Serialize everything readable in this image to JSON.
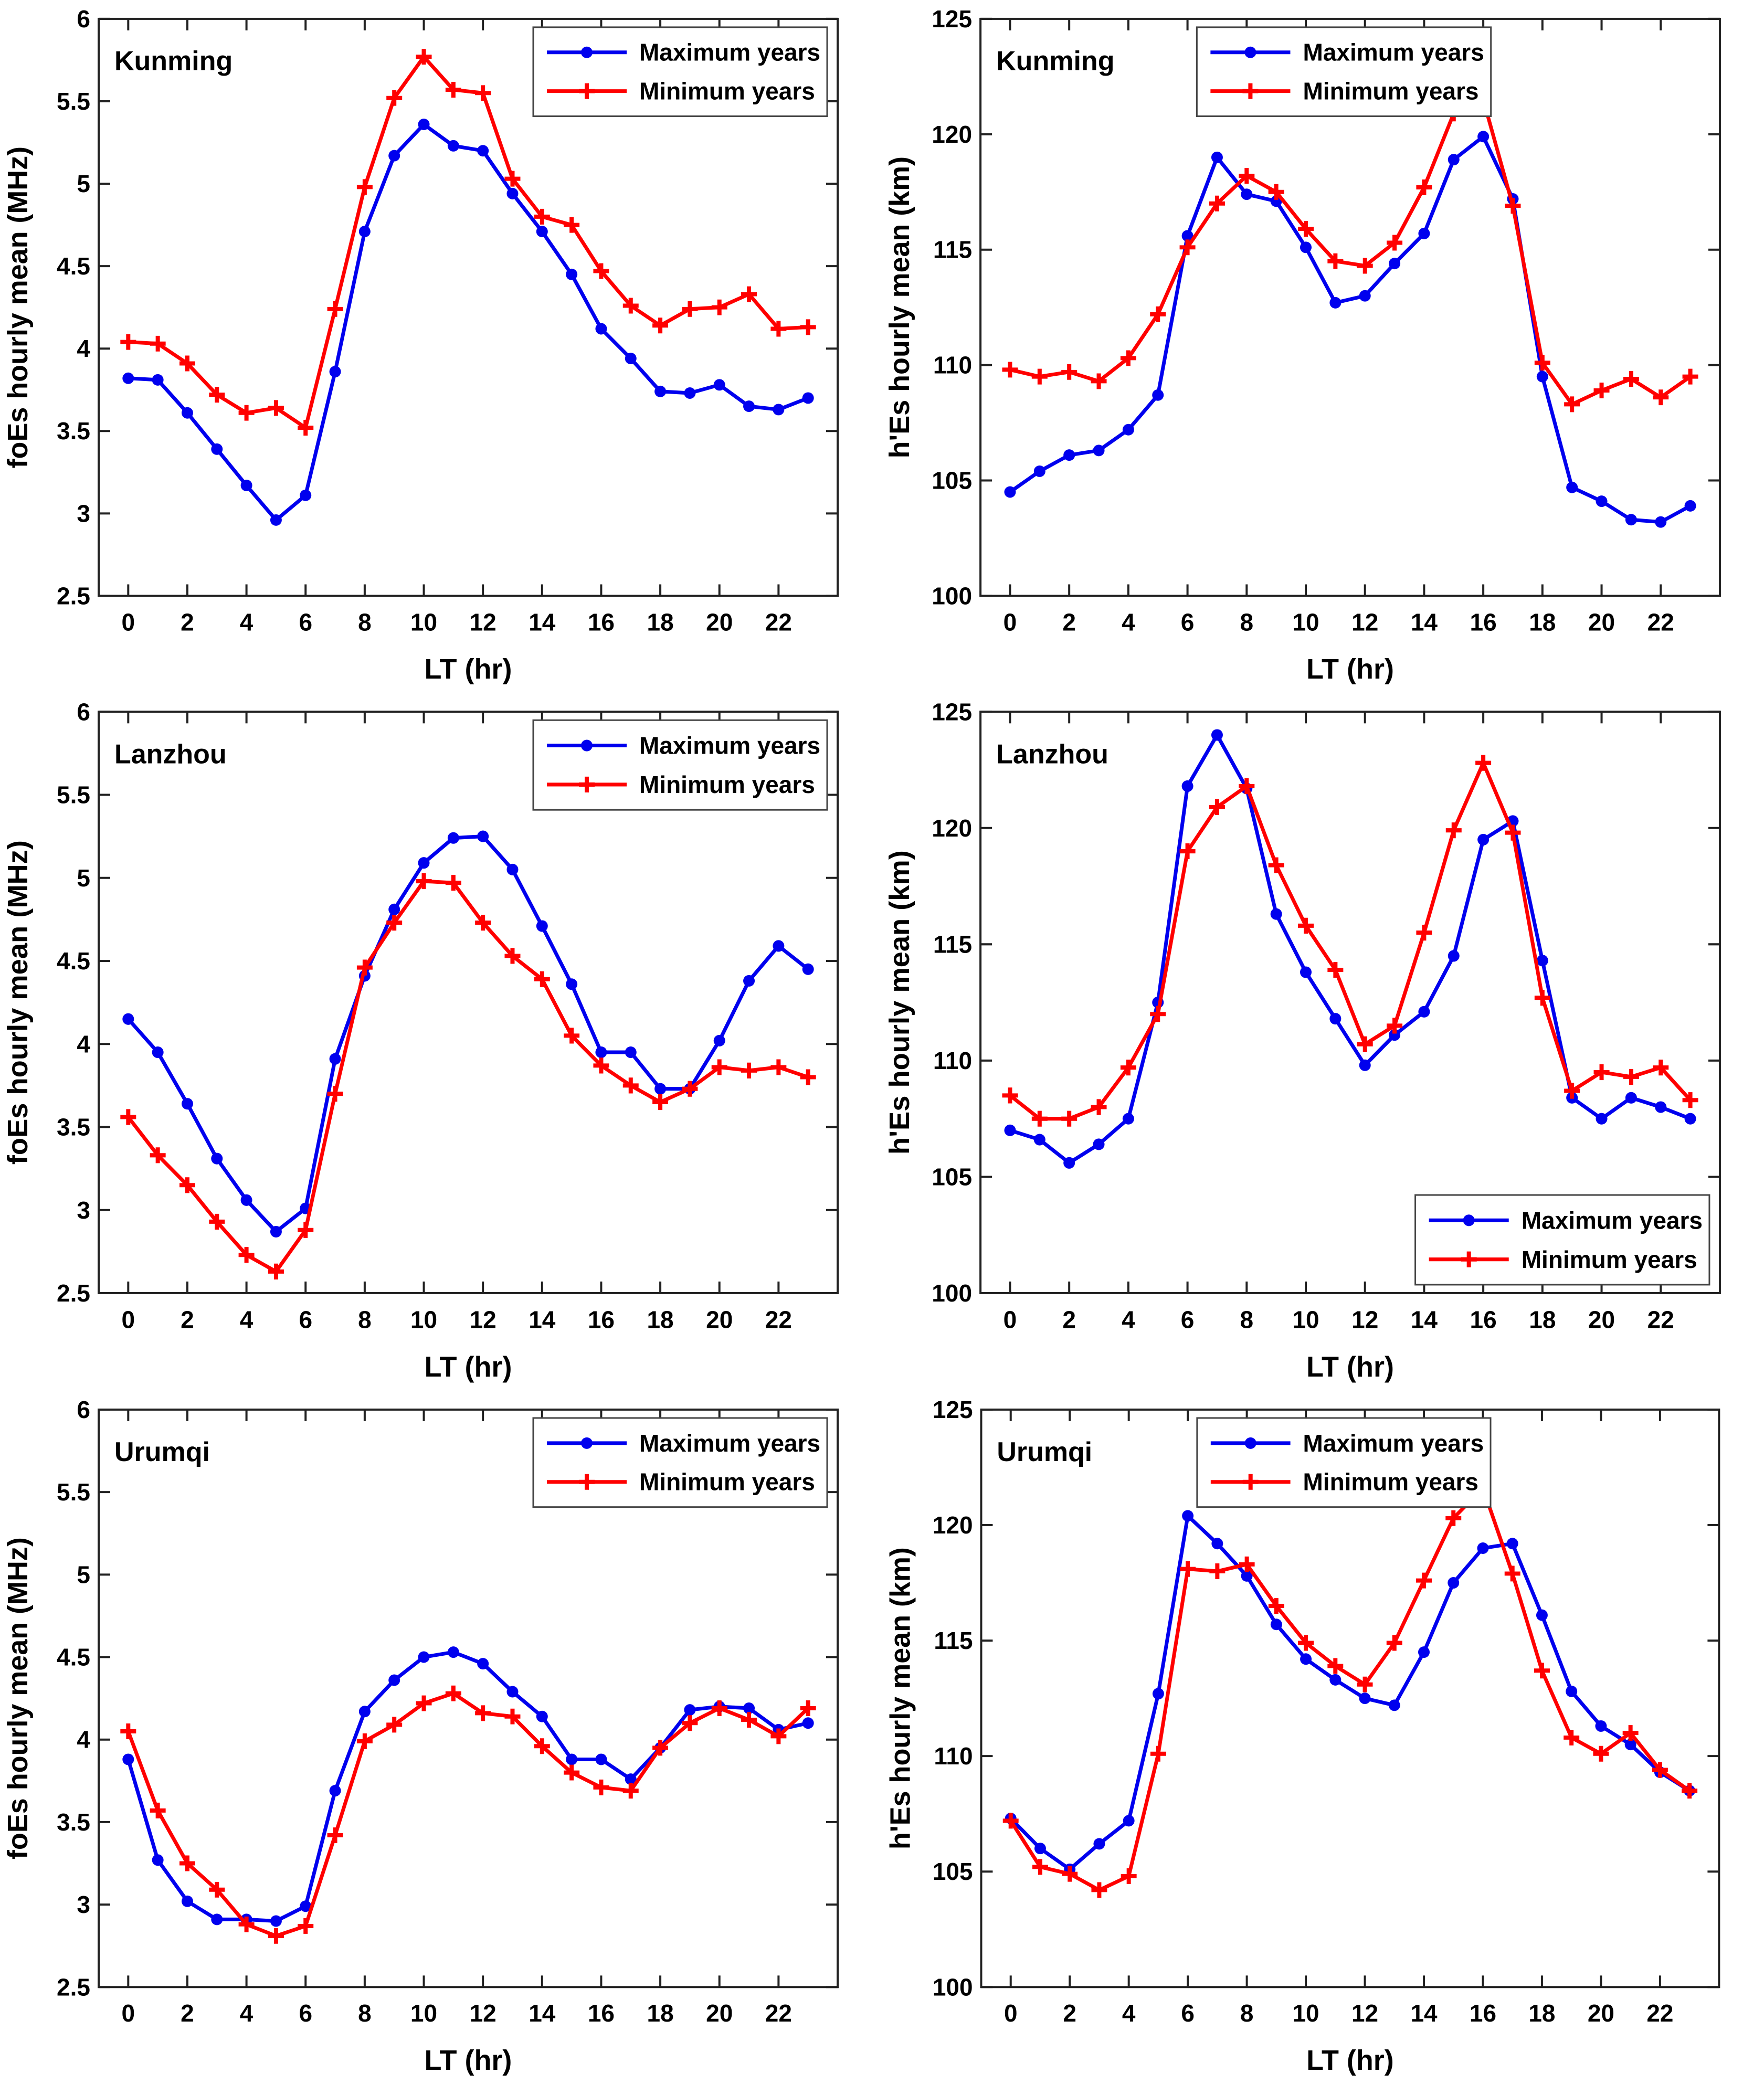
{
  "figure_background": "#FFFFFF",
  "series_colors": {
    "maximum_years": "#0000EE",
    "minimum_years": "#FF0000"
  },
  "axis_color": "#222222",
  "chart_data": [
    {
      "type": "line",
      "station": "Kunming",
      "ylabel": "foEs hourly mean (MHz)",
      "xlabel": "LT (hr)",
      "x": [
        0,
        1,
        2,
        3,
        4,
        5,
        6,
        7,
        8,
        9,
        10,
        11,
        12,
        13,
        14,
        15,
        16,
        17,
        18,
        19,
        20,
        21,
        22,
        23
      ],
      "xlim": [
        -1,
        24
      ],
      "ylim": [
        2.5,
        6
      ],
      "xticks": [
        0,
        2,
        4,
        6,
        8,
        10,
        12,
        14,
        16,
        18,
        20,
        22
      ],
      "yticks": [
        2.5,
        3,
        3.5,
        4,
        4.5,
        5,
        5.5,
        6
      ],
      "ytick_labels": [
        "2.5",
        "3",
        "3.5",
        "4",
        "4.5",
        "5",
        "5.5",
        "6"
      ],
      "grid": false,
      "legend_position": "top-right",
      "series": [
        {
          "name": "Maximum years",
          "color": "#0000EE",
          "marker": "circle",
          "values": [
            3.82,
            3.81,
            3.61,
            3.39,
            3.17,
            2.96,
            3.11,
            3.86,
            4.71,
            5.17,
            5.36,
            5.23,
            5.2,
            4.94,
            4.71,
            4.45,
            4.12,
            3.94,
            3.74,
            3.73,
            3.78,
            3.65,
            3.63,
            3.7
          ]
        },
        {
          "name": "Minimum years",
          "color": "#FF0000",
          "marker": "plus",
          "values": [
            4.04,
            4.03,
            3.91,
            3.72,
            3.61,
            3.64,
            3.52,
            4.24,
            4.98,
            5.52,
            5.77,
            5.57,
            5.55,
            5.03,
            4.8,
            4.75,
            4.47,
            4.26,
            4.14,
            4.24,
            4.25,
            4.33,
            4.12,
            4.13
          ]
        }
      ]
    },
    {
      "type": "line",
      "station": "Kunming",
      "ylabel": "h'Es hourly mean (km)",
      "xlabel": "LT (hr)",
      "x": [
        0,
        1,
        2,
        3,
        4,
        5,
        6,
        7,
        8,
        9,
        10,
        11,
        12,
        13,
        14,
        15,
        16,
        17,
        18,
        19,
        20,
        21,
        22,
        23
      ],
      "xlim": [
        -1,
        24
      ],
      "ylim": [
        100,
        125
      ],
      "xticks": [
        0,
        2,
        4,
        6,
        8,
        10,
        12,
        14,
        16,
        18,
        20,
        22
      ],
      "yticks": [
        100,
        105,
        110,
        115,
        120,
        125
      ],
      "ytick_labels": [
        "100",
        "105",
        "110",
        "115",
        "120",
        "125"
      ],
      "grid": false,
      "legend_position": "top-center",
      "series": [
        {
          "name": "Maximum years",
          "color": "#0000EE",
          "marker": "circle",
          "values": [
            104.5,
            105.4,
            106.1,
            106.3,
            107.2,
            108.7,
            115.6,
            119.0,
            117.4,
            117.1,
            115.1,
            112.7,
            113.0,
            114.4,
            115.7,
            118.9,
            119.9,
            117.2,
            109.5,
            104.7,
            104.1,
            103.3,
            103.2,
            103.9
          ]
        },
        {
          "name": "Minimum years",
          "color": "#FF0000",
          "marker": "plus",
          "values": [
            109.8,
            109.5,
            109.7,
            109.3,
            110.3,
            112.2,
            115.1,
            117.0,
            118.2,
            117.5,
            115.9,
            114.5,
            114.3,
            115.3,
            117.7,
            120.9,
            121.5,
            116.9,
            110.1,
            108.3,
            108.9,
            109.4,
            108.6,
            109.5
          ]
        }
      ]
    },
    {
      "type": "line",
      "station": "Lanzhou",
      "ylabel": "foEs hourly mean (MHz)",
      "xlabel": "LT (hr)",
      "x": [
        0,
        1,
        2,
        3,
        4,
        5,
        6,
        7,
        8,
        9,
        10,
        11,
        12,
        13,
        14,
        15,
        16,
        17,
        18,
        19,
        20,
        21,
        22,
        23
      ],
      "xlim": [
        -1,
        24
      ],
      "ylim": [
        2.5,
        6
      ],
      "xticks": [
        0,
        2,
        4,
        6,
        8,
        10,
        12,
        14,
        16,
        18,
        20,
        22
      ],
      "yticks": [
        2.5,
        3,
        3.5,
        4,
        4.5,
        5,
        5.5,
        6
      ],
      "ytick_labels": [
        "2.5",
        "3",
        "3.5",
        "4",
        "4.5",
        "5",
        "5.5",
        "6"
      ],
      "grid": false,
      "legend_position": "top-right",
      "series": [
        {
          "name": "Maximum years",
          "color": "#0000EE",
          "marker": "circle",
          "values": [
            4.15,
            3.95,
            3.64,
            3.31,
            3.06,
            2.87,
            3.01,
            3.91,
            4.41,
            4.81,
            5.09,
            5.24,
            5.25,
            5.05,
            4.71,
            4.36,
            3.95,
            3.95,
            3.73,
            3.73,
            4.02,
            4.38,
            4.59,
            4.45
          ]
        },
        {
          "name": "Minimum years",
          "color": "#FF0000",
          "marker": "plus",
          "values": [
            3.56,
            3.33,
            3.15,
            2.93,
            2.73,
            2.63,
            2.88,
            3.7,
            4.46,
            4.73,
            4.98,
            4.97,
            4.73,
            4.53,
            4.39,
            4.05,
            3.87,
            3.75,
            3.65,
            3.73,
            3.86,
            3.84,
            3.86,
            3.8
          ]
        }
      ]
    },
    {
      "type": "line",
      "station": "Lanzhou",
      "ylabel": "h'Es hourly mean (km)",
      "xlabel": "LT (hr)",
      "x": [
        0,
        1,
        2,
        3,
        4,
        5,
        6,
        7,
        8,
        9,
        10,
        11,
        12,
        13,
        14,
        15,
        16,
        17,
        18,
        19,
        20,
        21,
        22,
        23
      ],
      "xlim": [
        -1,
        24
      ],
      "ylim": [
        100,
        125
      ],
      "xticks": [
        0,
        2,
        4,
        6,
        8,
        10,
        12,
        14,
        16,
        18,
        20,
        22
      ],
      "yticks": [
        100,
        105,
        110,
        115,
        120,
        125
      ],
      "ytick_labels": [
        "100",
        "105",
        "110",
        "115",
        "120",
        "125"
      ],
      "grid": false,
      "legend_position": "bottom-right",
      "series": [
        {
          "name": "Maximum years",
          "color": "#0000EE",
          "marker": "circle",
          "values": [
            107.0,
            106.6,
            105.6,
            106.4,
            107.5,
            112.5,
            121.8,
            124.0,
            121.7,
            116.3,
            113.8,
            111.8,
            109.8,
            111.1,
            112.1,
            114.5,
            119.5,
            120.3,
            114.3,
            108.4,
            107.5,
            108.4,
            108.0,
            107.5
          ]
        },
        {
          "name": "Minimum years",
          "color": "#FF0000",
          "marker": "plus",
          "values": [
            108.5,
            107.5,
            107.5,
            108.0,
            109.7,
            112.0,
            119.0,
            120.9,
            121.8,
            118.4,
            115.8,
            113.9,
            110.7,
            111.5,
            115.5,
            119.9,
            122.8,
            119.8,
            112.7,
            108.7,
            109.5,
            109.3,
            109.7,
            108.3
          ]
        }
      ]
    },
    {
      "type": "line",
      "station": "Urumqi",
      "ylabel": "foEs hourly mean (MHz)",
      "xlabel": "LT (hr)",
      "x": [
        0,
        1,
        2,
        3,
        4,
        5,
        6,
        7,
        8,
        9,
        10,
        11,
        12,
        13,
        14,
        15,
        16,
        17,
        18,
        19,
        20,
        21,
        22,
        23
      ],
      "xlim": [
        -1,
        24
      ],
      "ylim": [
        2.5,
        6
      ],
      "xticks": [
        0,
        2,
        4,
        6,
        8,
        10,
        12,
        14,
        16,
        18,
        20,
        22
      ],
      "yticks": [
        2.5,
        3,
        3.5,
        4,
        4.5,
        5,
        5.5,
        6
      ],
      "ytick_labels": [
        "2.5",
        "3",
        "3.5",
        "4",
        "4.5",
        "5",
        "5.5",
        "6"
      ],
      "grid": false,
      "legend_position": "top-right",
      "series": [
        {
          "name": "Maximum years",
          "color": "#0000EE",
          "marker": "circle",
          "values": [
            3.88,
            3.27,
            3.02,
            2.91,
            2.91,
            2.9,
            2.99,
            3.69,
            4.17,
            4.36,
            4.5,
            4.53,
            4.46,
            4.29,
            4.14,
            3.88,
            3.88,
            3.76,
            3.95,
            4.18,
            4.2,
            4.19,
            4.06,
            4.1
          ]
        },
        {
          "name": "Minimum years",
          "color": "#FF0000",
          "marker": "plus",
          "values": [
            4.05,
            3.57,
            3.25,
            3.09,
            2.88,
            2.81,
            2.87,
            3.42,
            3.99,
            4.09,
            4.22,
            4.28,
            4.16,
            4.14,
            3.96,
            3.8,
            3.71,
            3.69,
            3.95,
            4.1,
            4.19,
            4.12,
            4.02,
            4.19
          ]
        }
      ]
    },
    {
      "type": "line",
      "station": "Urumqi",
      "ylabel": "h'Es hourly mean (km)",
      "xlabel": "LT (hr)",
      "x": [
        0,
        1,
        2,
        3,
        4,
        5,
        6,
        7,
        8,
        9,
        10,
        11,
        12,
        13,
        14,
        15,
        16,
        17,
        18,
        19,
        20,
        21,
        22,
        23
      ],
      "xlim": [
        -1,
        24
      ],
      "ylim": [
        100,
        125
      ],
      "xticks": [
        0,
        2,
        4,
        6,
        8,
        10,
        12,
        14,
        16,
        18,
        20,
        22
      ],
      "yticks": [
        100,
        105,
        110,
        115,
        120,
        125
      ],
      "ytick_labels": [
        "100",
        "105",
        "110",
        "115",
        "120",
        "125"
      ],
      "grid": false,
      "legend_position": "top-center",
      "series": [
        {
          "name": "Maximum years",
          "color": "#0000EE",
          "marker": "circle",
          "values": [
            107.3,
            106.0,
            105.1,
            106.2,
            107.2,
            112.7,
            120.4,
            119.2,
            117.8,
            115.7,
            114.2,
            113.3,
            112.5,
            112.2,
            114.5,
            117.5,
            119.0,
            119.2,
            116.1,
            112.8,
            111.3,
            110.5,
            109.3,
            108.5
          ]
        },
        {
          "name": "Minimum years",
          "color": "#FF0000",
          "marker": "plus",
          "values": [
            107.2,
            105.2,
            104.9,
            104.2,
            104.8,
            110.1,
            118.1,
            118.0,
            118.3,
            116.5,
            114.9,
            113.9,
            113.1,
            114.9,
            117.6,
            120.3,
            121.6,
            117.9,
            113.7,
            110.8,
            110.1,
            111.0,
            109.4,
            108.5
          ]
        }
      ]
    }
  ]
}
